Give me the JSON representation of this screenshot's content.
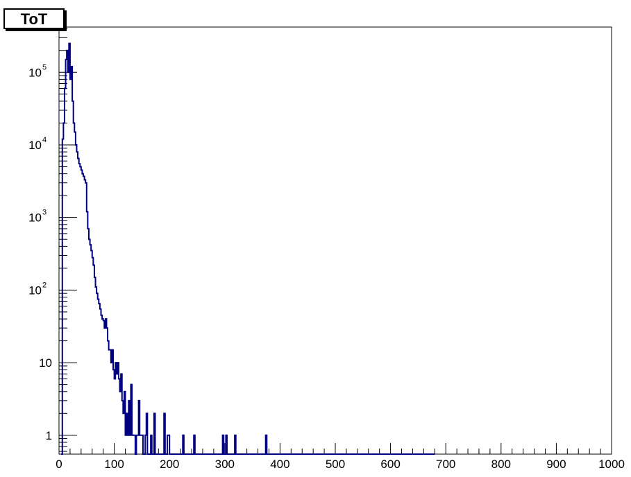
{
  "chart_data": {
    "type": "bar",
    "title": "ToT",
    "xlabel": "",
    "ylabel": "",
    "xlim": [
      0,
      1000
    ],
    "ylim": [
      0.55,
      420000
    ],
    "y_scale": "log",
    "grid": false,
    "colors": {
      "line": "#000080",
      "axis": "#000000",
      "background": "#ffffff"
    },
    "x_ticks": [
      "0",
      "100",
      "200",
      "300",
      "400",
      "500",
      "600",
      "700",
      "800",
      "900",
      "1000"
    ],
    "y_ticks": [
      {
        "value": 1,
        "label": "1"
      },
      {
        "value": 10,
        "label": "10"
      },
      {
        "value": 100,
        "label": "10",
        "exp": "2"
      },
      {
        "value": 1000,
        "label": "10",
        "exp": "3"
      },
      {
        "value": 10000,
        "label": "10",
        "exp": "4"
      },
      {
        "value": 100000,
        "label": "10",
        "exp": "5"
      }
    ],
    "bin_width": 2,
    "series": [
      {
        "bin_centers": [
          5,
          7,
          9,
          11,
          13,
          15,
          17,
          19,
          21,
          23,
          25,
          27,
          29,
          31,
          33,
          35,
          37,
          39,
          41,
          43,
          45,
          47,
          49,
          51,
          53,
          55,
          57,
          59,
          61,
          63,
          65,
          67,
          69,
          71,
          73,
          75,
          77,
          79,
          81,
          83,
          85,
          87,
          89,
          91,
          93,
          95,
          97,
          99,
          101,
          103,
          105,
          107,
          109,
          111,
          113,
          115,
          117,
          119,
          121,
          123,
          125,
          127,
          129,
          131,
          133,
          135,
          137,
          139,
          141,
          143,
          145,
          147,
          149,
          151,
          153,
          155,
          157,
          159,
          161,
          163,
          165,
          167,
          169,
          171,
          173,
          175,
          177,
          179,
          181,
          183,
          185,
          187,
          189,
          191,
          193,
          195,
          197,
          199,
          201,
          203,
          205,
          207,
          209,
          211,
          213,
          215,
          217,
          219,
          221,
          223,
          225,
          227,
          229,
          231,
          233,
          235,
          237,
          239,
          241,
          243,
          245,
          247,
          249,
          251,
          253,
          255,
          257,
          259,
          261,
          263,
          265,
          267,
          269,
          271,
          273,
          275,
          277,
          279,
          281,
          283,
          285,
          287,
          289,
          291,
          293,
          295,
          297,
          299,
          301,
          303,
          305,
          307,
          309,
          311,
          313,
          315,
          317,
          319,
          321,
          323,
          325,
          327,
          329,
          331,
          333,
          335,
          337,
          339,
          341,
          343,
          345,
          347,
          349,
          351,
          353,
          355,
          357,
          359,
          361,
          363,
          365,
          367,
          369,
          371,
          373,
          375,
          377,
          379,
          381,
          383,
          385,
          387,
          389,
          391,
          393,
          395,
          397,
          399,
          401,
          403,
          405,
          407,
          409,
          411,
          413,
          415,
          417,
          419,
          421,
          423,
          425,
          427,
          429,
          431,
          433,
          435,
          437,
          439,
          441,
          443,
          445,
          447,
          449,
          451,
          453,
          455,
          457,
          459,
          461,
          463,
          465,
          467,
          469,
          471,
          473,
          475,
          477,
          479,
          481,
          483,
          485,
          487,
          489,
          491,
          493,
          495,
          497,
          499,
          501,
          503,
          505,
          507,
          509,
          511,
          513,
          515,
          517,
          519,
          521,
          523,
          525,
          527,
          529,
          531,
          533,
          535,
          537,
          539,
          541,
          543,
          545,
          547,
          549,
          551,
          553,
          555,
          557,
          559,
          561,
          563,
          565,
          567,
          569,
          571,
          573,
          575,
          577,
          579,
          581,
          583,
          585,
          587,
          589,
          591,
          593,
          595,
          597,
          599,
          601,
          603,
          605,
          607,
          609,
          611,
          613,
          615,
          617,
          619,
          621,
          623,
          625,
          627,
          629,
          631,
          633,
          635,
          637,
          639,
          641,
          643,
          645,
          647,
          649,
          651,
          653,
          655,
          657,
          659,
          661,
          663,
          665,
          667,
          669,
          671,
          673,
          675,
          677,
          679
        ],
        "counts": [
          0,
          12000,
          20000,
          60000,
          150000,
          200000,
          100000,
          250000,
          80000,
          120000,
          40000,
          20000,
          15000,
          10000,
          8000,
          6500,
          5500,
          5000,
          4500,
          4000,
          3700,
          3300,
          3000,
          1200,
          700,
          500,
          420,
          350,
          280,
          220,
          150,
          110,
          90,
          75,
          65,
          55,
          45,
          40,
          38,
          30,
          40,
          30,
          20,
          15,
          15,
          10,
          15,
          8,
          6,
          10,
          7,
          10,
          6,
          4,
          7,
          3,
          2,
          4,
          1,
          2,
          1,
          3,
          1,
          5,
          1,
          1,
          1,
          0,
          1,
          1,
          3,
          1,
          1,
          1,
          0,
          0,
          1,
          2,
          0,
          0,
          0,
          1,
          0,
          0,
          2,
          0,
          0,
          0,
          0,
          0,
          0,
          0,
          0,
          2,
          0,
          0,
          1,
          1,
          0,
          0,
          0,
          0,
          0,
          0,
          0,
          0,
          0,
          0,
          0,
          0,
          1,
          0,
          0,
          0,
          0,
          0,
          0,
          0,
          0,
          0,
          1,
          0,
          0,
          0,
          0,
          0,
          0,
          0,
          0,
          0,
          0,
          0,
          0,
          0,
          0,
          0,
          0,
          0,
          0,
          0,
          0,
          0,
          0,
          0,
          0,
          0,
          1,
          0,
          0,
          1,
          0,
          0,
          0,
          0,
          0,
          0,
          0,
          1,
          0,
          0,
          0,
          0,
          0,
          0,
          0,
          0,
          0,
          0,
          0,
          0,
          0,
          0,
          0,
          0,
          0,
          0,
          0,
          0,
          0,
          0,
          0,
          0,
          0,
          0,
          0,
          1,
          0,
          0,
          0,
          0,
          0,
          0,
          0,
          0,
          0,
          0,
          0,
          0,
          0,
          0,
          0,
          0,
          0,
          0,
          0,
          0,
          0,
          0,
          0,
          0,
          0,
          0,
          0,
          0,
          0,
          0,
          0,
          0,
          0,
          0,
          0,
          0,
          0,
          0,
          0,
          0,
          0,
          0,
          0,
          0,
          0,
          0,
          0,
          0,
          0,
          0,
          0,
          0,
          0,
          0,
          0,
          0,
          0,
          0,
          0,
          0,
          0,
          0,
          0,
          0,
          0,
          0,
          0,
          0,
          0,
          0,
          0,
          0,
          0,
          0,
          0,
          0,
          0,
          0,
          0,
          0,
          0,
          0,
          0,
          0,
          0,
          0,
          0,
          0,
          0,
          0,
          0,
          0,
          0,
          0,
          0,
          0,
          0,
          0,
          0,
          0,
          0,
          0,
          0,
          0,
          0,
          0,
          0,
          0,
          0,
          0,
          0,
          0,
          0,
          0,
          0,
          0,
          0,
          0,
          0,
          0,
          0,
          0,
          0,
          0,
          0,
          0,
          0,
          0,
          0,
          0,
          0,
          0,
          0,
          0,
          0,
          0,
          0,
          0,
          0,
          0,
          0,
          0,
          0,
          0,
          0,
          0,
          0,
          0,
          0,
          0,
          0
        ]
      }
    ]
  }
}
